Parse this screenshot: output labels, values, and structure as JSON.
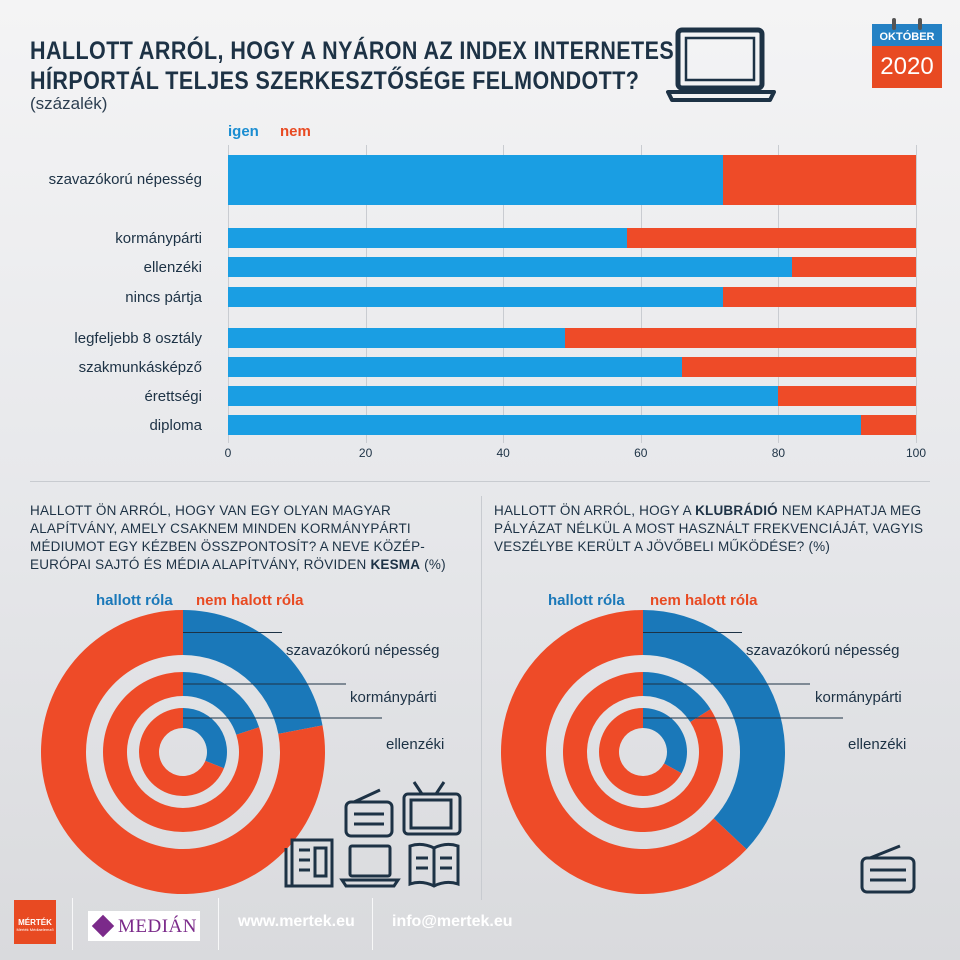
{
  "header": {
    "title_line1": "HALLOTT ARRÓL, HOGY A NYÁRON AZ INDEX INTERNETES",
    "title_line2": "HÍRPORTÁL TELJES SZERKESZTŐSÉGE FELMONDOTT?",
    "subtitle": "(százalék)",
    "badge_month": "OKTÓBER",
    "badge_year": "2020"
  },
  "colors": {
    "igen": "#1a9ee3",
    "nem": "#ee4b28",
    "dark_blue": "#1a78b9",
    "text": "#1d3245"
  },
  "chart_data": [
    {
      "type": "bar",
      "orientation": "horizontal",
      "stacked": true,
      "title": "HALLOTT ARRÓL, HOGY A NYÁRON AZ INDEX INTERNETES HÍRPORTÁL TELJES SZERKESZTŐSÉGE FELMONDOTT?",
      "subtitle": "(százalék)",
      "legend": [
        "igen",
        "nem"
      ],
      "legend_position": "top-left",
      "xlim": [
        0,
        100
      ],
      "xticks": [
        "0",
        "20",
        "40",
        "60",
        "80",
        "100"
      ],
      "grid": true,
      "categories": [
        "szavazókorú népesség",
        "kormánypárti",
        "ellenzéki",
        "nincs pártja",
        "legfeljebb 8 osztály",
        "szakmunkásképző",
        "érettségi",
        "diploma"
      ],
      "series": [
        {
          "name": "igen",
          "values": [
            72,
            58,
            82,
            72,
            49,
            66,
            80,
            92
          ]
        },
        {
          "name": "nem",
          "values": [
            28,
            42,
            18,
            28,
            51,
            34,
            20,
            8
          ]
        }
      ]
    },
    {
      "type": "pie",
      "variant": "concentric-donut",
      "title_parts": [
        "HALLOTT ÖN ARRÓL, HOGY VAN EGY OLYAN MAGYAR ALAPÍTVÁNY, AMELY CSAKNEM MINDEN KORMÁNYPÁRTI MÉDIUMOT EGY KÉZBEN ÖSSZPONTOSÍT? A NEVE KÖZÉP-EURÓPAI SAJTÓ ÉS MÉDIA ALAPÍTVÁNY, RÖVIDEN ",
        "KESMA",
        " (%)"
      ],
      "legend": [
        "hallott róla",
        "nem halott róla"
      ],
      "rings": [
        {
          "name": "szavazókorú népesség",
          "values": [
            22,
            78
          ]
        },
        {
          "name": "kormánypárti",
          "values": [
            20,
            80
          ]
        },
        {
          "name": "ellenzéki",
          "values": [
            31,
            69
          ]
        }
      ]
    },
    {
      "type": "pie",
      "variant": "concentric-donut",
      "title_parts": [
        "HALLOTT ÖN ARRÓL, HOGY A ",
        "KLUBRÁDIÓ",
        " NEM KAPHATJA MEG PÁLYÁZAT NÉLKÜL A MOST HASZNÁLT FREKVENCIÁJÁT, VAGYIS VESZÉLYBE KERÜLT A JÖVŐBELI MŰKÖDÉSE? (%)"
      ],
      "legend": [
        "hallott róla",
        "nem halott róla"
      ],
      "rings": [
        {
          "name": "szavazókorú népesség",
          "values": [
            37,
            63
          ]
        },
        {
          "name": "kormánypárti",
          "values": [
            16,
            84
          ]
        },
        {
          "name": "ellenzéki",
          "values": [
            33,
            67
          ]
        }
      ]
    }
  ],
  "footer": {
    "mertek_logo": "MÉRTÉK",
    "mertek_tagline": "Mérték Médiaelemző",
    "median_logo": "MEDIÁN",
    "website": "www.mertek.eu",
    "email": "info@mertek.eu"
  },
  "icons": [
    "laptop-icon",
    "calendar-icon",
    "newspaper-icon",
    "radio-icon",
    "tv-icon",
    "laptop-icon",
    "magazine-icon"
  ]
}
